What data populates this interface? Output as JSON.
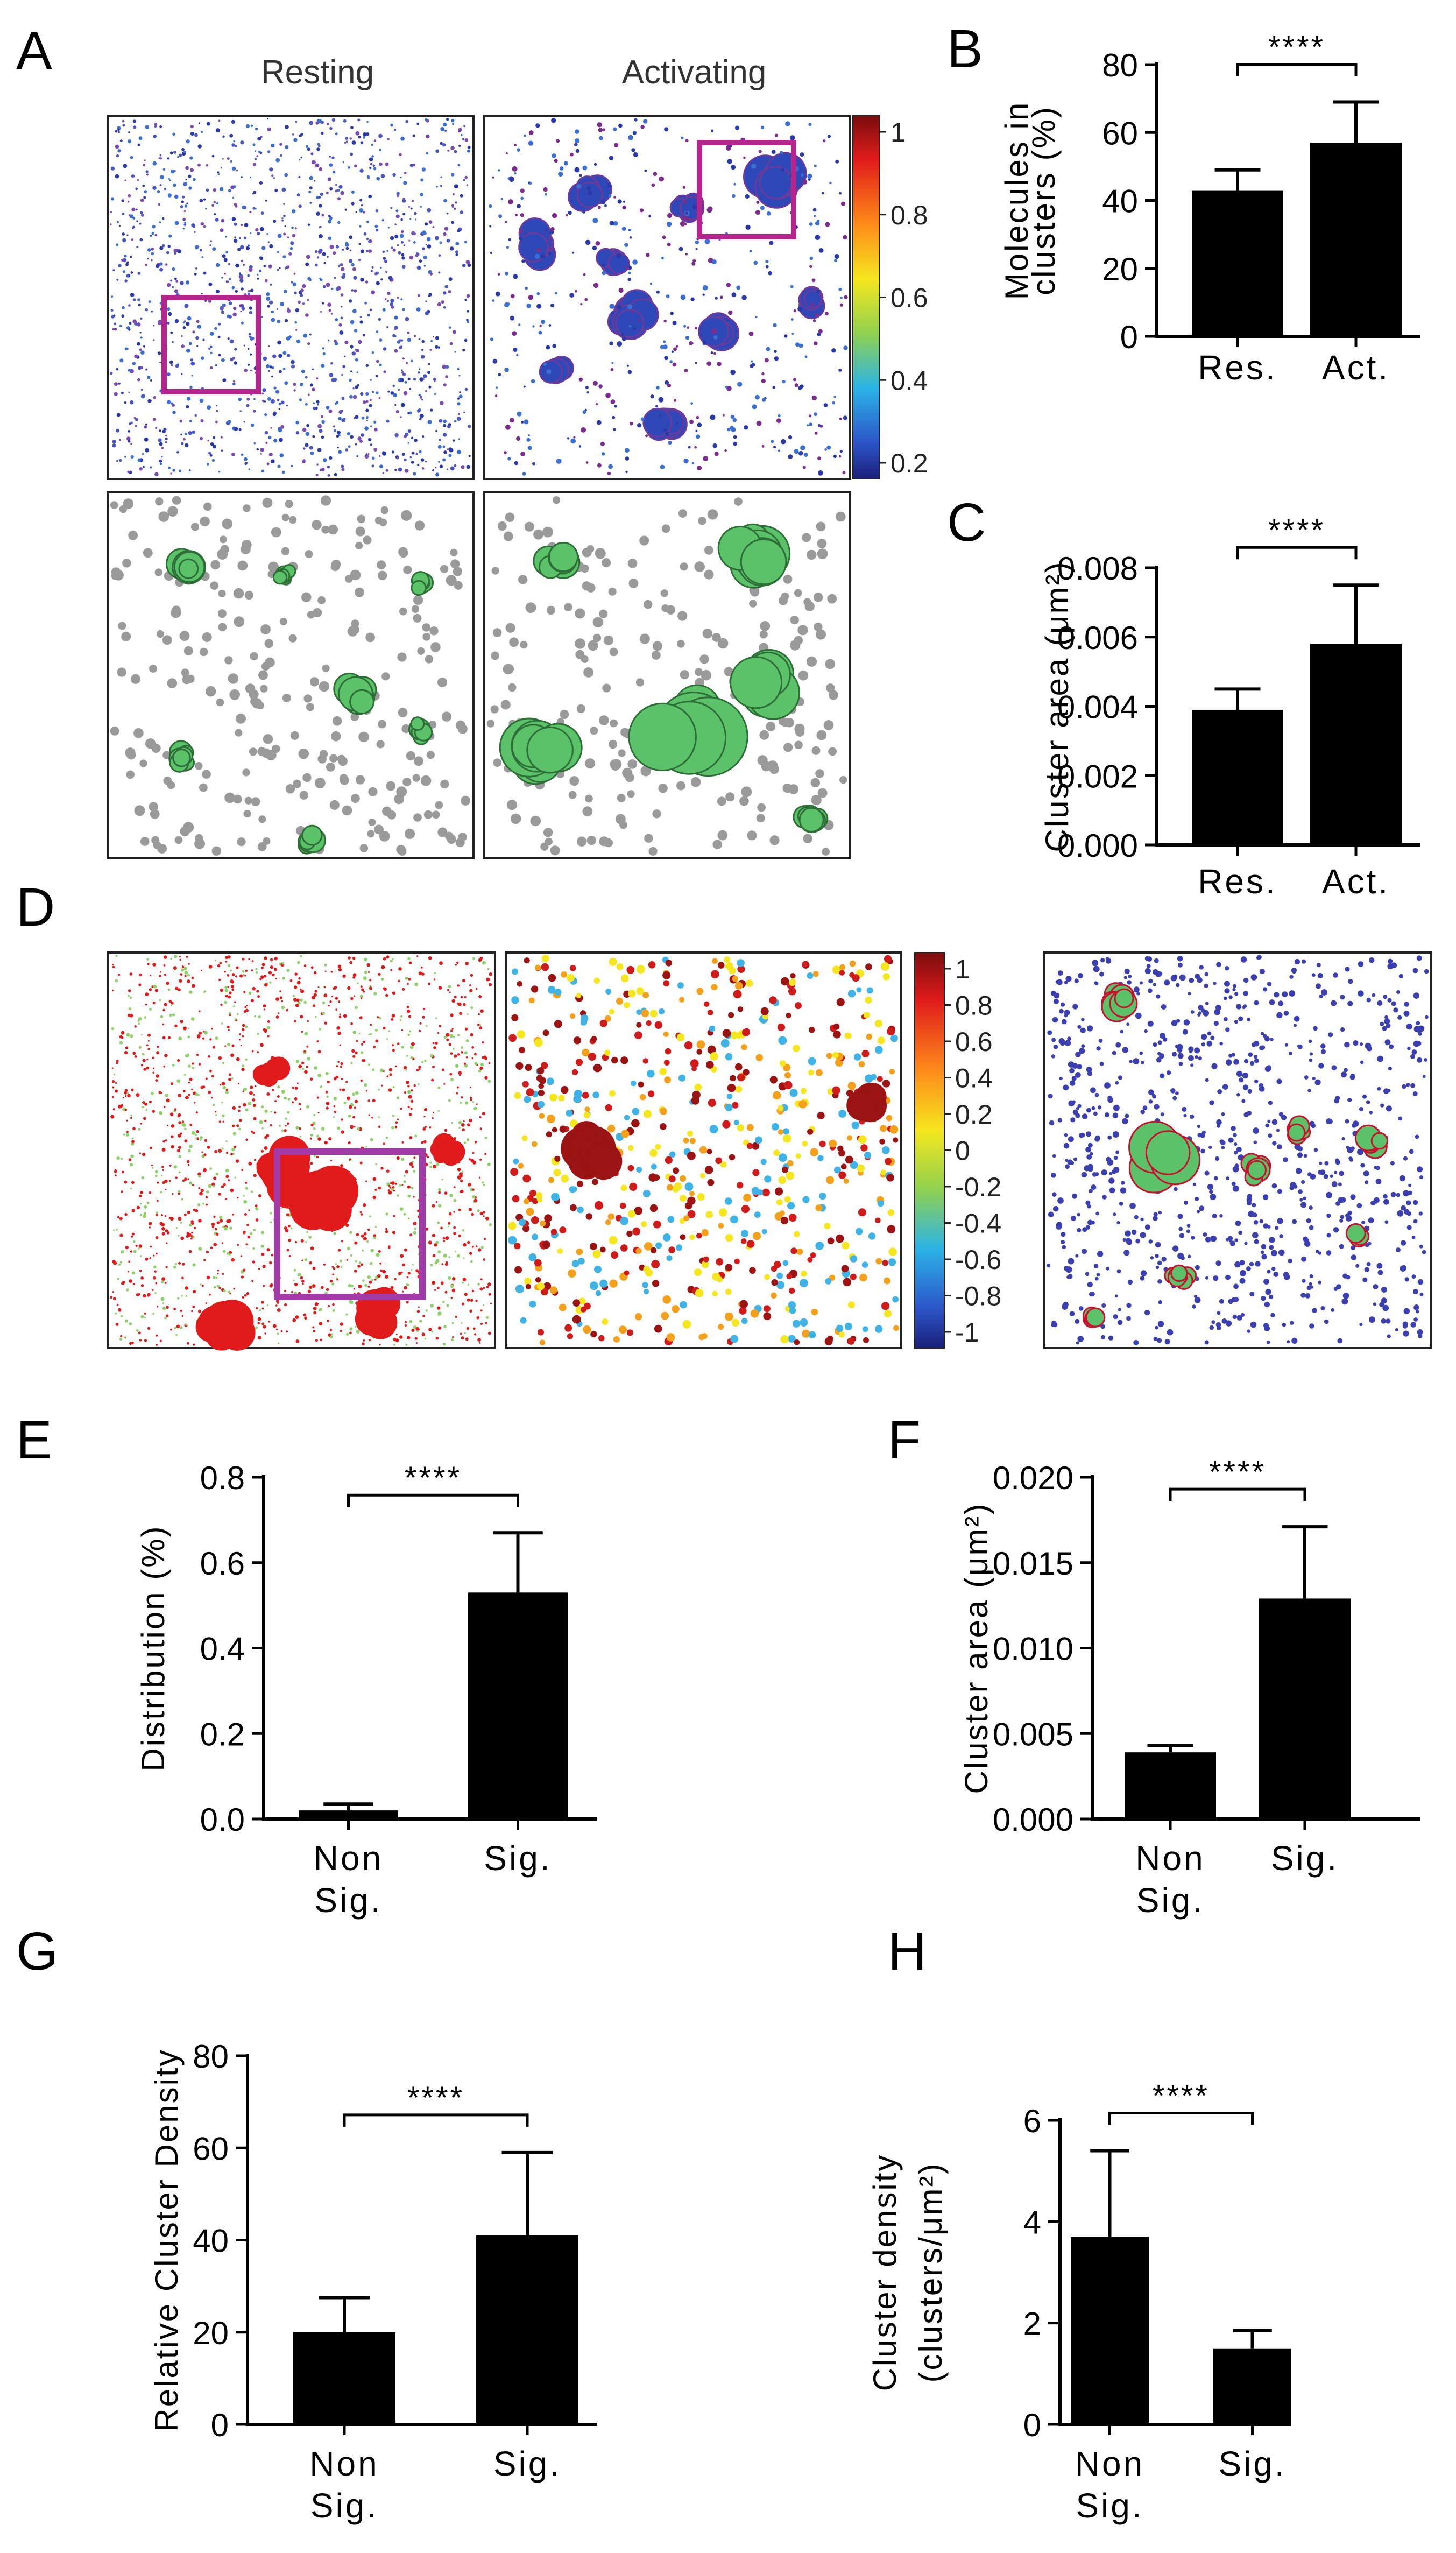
{
  "panels": {
    "A": {
      "letter": "A",
      "col_titles": [
        "Resting",
        "Activating"
      ],
      "colorbar_ticks": [
        "1",
        "0.8",
        "0.6",
        "0.4",
        "0.2"
      ]
    },
    "D": {
      "letter": "D",
      "colorbar_ticks": [
        "1",
        "0.8",
        "0.6",
        "0.4",
        "0.2",
        "0",
        "-0.2",
        "-0.4",
        "-0.6",
        "-0.8",
        "-1"
      ]
    }
  },
  "colors": {
    "bar": "#000000",
    "box": "#b4268e",
    "cluster_green": "#5cc26a",
    "point_grey": "#9a9a9a",
    "point_blue": "#3b3fb0",
    "point_red": "#e11b1b",
    "point_lightgreen": "#8ed16a"
  },
  "chart_data": [
    {
      "id": "B",
      "letter": "B",
      "type": "bar",
      "categories": [
        "Res.",
        "Act."
      ],
      "values": [
        43,
        57
      ],
      "errors": [
        6,
        12
      ],
      "ylabel": [
        "Molecules in",
        "clusters (%)"
      ],
      "ylim": [
        0,
        80
      ],
      "yticks": [
        "0",
        "20",
        "40",
        "60",
        "80"
      ],
      "significance": "****"
    },
    {
      "id": "C",
      "letter": "C",
      "type": "bar",
      "categories": [
        "Res.",
        "Act."
      ],
      "values": [
        0.0039,
        0.0058
      ],
      "errors": [
        0.0006,
        0.0017
      ],
      "ylabel": [
        "Cluster area (μm²)"
      ],
      "ylim": [
        0,
        0.008
      ],
      "yticks": [
        "0.000",
        "0.002",
        "0.004",
        "0.006",
        "0.008"
      ],
      "significance": "****"
    },
    {
      "id": "E",
      "letter": "E",
      "type": "bar",
      "categories": [
        "Non\nSig.",
        "Sig."
      ],
      "values": [
        0.02,
        0.53
      ],
      "errors": [
        0.015,
        0.14
      ],
      "ylabel": [
        "Distribution (%)"
      ],
      "ylim": [
        0,
        0.8
      ],
      "yticks": [
        "0.0",
        "0.2",
        "0.4",
        "0.6",
        "0.8"
      ],
      "significance": "****"
    },
    {
      "id": "F",
      "letter": "F",
      "type": "bar",
      "categories": [
        "Non\nSig.",
        "Sig."
      ],
      "values": [
        0.0039,
        0.0129
      ],
      "errors": [
        0.0004,
        0.0042
      ],
      "ylabel": [
        "Cluster area (μm²)"
      ],
      "ylim": [
        0,
        0.02
      ],
      "yticks": [
        "0.000",
        "0.005",
        "0.010",
        "0.015",
        "0.020"
      ],
      "significance": "****"
    },
    {
      "id": "G",
      "letter": "G",
      "type": "bar",
      "categories": [
        "Non\nSig.",
        "Sig."
      ],
      "values": [
        20,
        41
      ],
      "errors": [
        7.5,
        18
      ],
      "ylabel": [
        "Relative Cluster Density"
      ],
      "ylim": [
        0,
        80
      ],
      "yticks": [
        "0",
        "20",
        "40",
        "60",
        "80"
      ],
      "significance": "****"
    },
    {
      "id": "H",
      "letter": "H",
      "type": "bar",
      "categories": [
        "Non\nSig.",
        "Sig."
      ],
      "values": [
        3.7,
        1.5
      ],
      "errors": [
        1.7,
        0.35
      ],
      "ylabel": [
        "Cluster density",
        "(clusters/μm²)"
      ],
      "ylim": [
        0,
        6
      ],
      "yticks": [
        "0",
        "2",
        "4",
        "6"
      ],
      "significance": "****"
    }
  ]
}
